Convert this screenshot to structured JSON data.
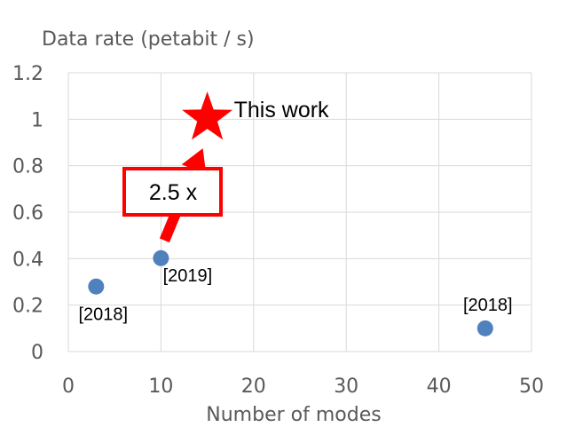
{
  "chart_data": {
    "type": "scatter",
    "title": "",
    "xlabel": "Number of modes",
    "ylabel": "Data rate (petabit / s)",
    "xlim": [
      0,
      50
    ],
    "ylim": [
      0,
      1.2
    ],
    "x_ticks": [
      "0",
      "10",
      "20",
      "30",
      "40",
      "50"
    ],
    "y_ticks": [
      "0",
      "0.2",
      "0.4",
      "0.6",
      "0.8",
      "1",
      "1.2"
    ],
    "grid": true,
    "points": [
      {
        "x": 3,
        "y": 0.28,
        "label": "[2018]"
      },
      {
        "x": 10,
        "y": 0.402,
        "label": "[2019]"
      },
      {
        "x": 45,
        "y": 0.1,
        "label": "[2018]"
      }
    ],
    "highlight": {
      "x": 15,
      "y": 1.02,
      "label": "This work"
    },
    "callout": {
      "text": "2.5 x",
      "from_x": 10,
      "to_x": 15
    },
    "colors": {
      "points": "#4f81bd",
      "highlight": "#ff0000",
      "grid": "#d9d9d9",
      "text": "#595959"
    }
  }
}
